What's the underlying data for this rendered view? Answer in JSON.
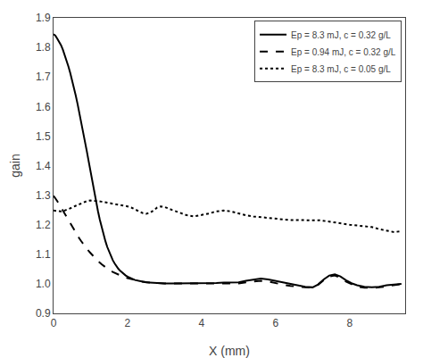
{
  "chart_data": {
    "type": "line",
    "xlabel": "X (mm)",
    "ylabel": "gain",
    "xlim": [
      0,
      9.5
    ],
    "ylim": [
      0.9,
      1.9
    ],
    "xticks": [
      0,
      2,
      4,
      6,
      8
    ],
    "yticks": [
      0.9,
      {
        "value": 1.0,
        "label": "1.0"
      },
      1.1,
      1.2,
      1.3,
      1.4,
      1.5,
      1.6,
      1.7,
      1.8,
      1.9
    ],
    "grid": false,
    "legend": "upper right",
    "series": [
      {
        "name": "Ep = 8.3 mJ, c = 0.32 g/L",
        "color": "#000000",
        "line_style": "solid",
        "x": [
          0.0,
          0.05,
          0.1,
          0.15,
          0.2,
          0.25,
          0.3,
          0.35,
          0.4,
          0.45,
          0.5,
          0.55,
          0.6,
          0.65,
          0.7,
          0.75,
          0.8,
          0.85,
          0.9,
          0.95,
          1.0,
          1.05,
          1.1,
          1.15,
          1.2,
          1.25,
          1.3,
          1.35,
          1.4,
          1.45,
          1.5,
          1.55,
          1.6,
          1.65,
          1.7,
          1.75,
          1.8,
          1.85,
          1.9,
          1.95,
          2.0,
          2.1,
          2.2,
          2.3,
          2.4,
          2.5,
          2.6,
          2.7,
          2.8,
          2.9,
          3.0,
          3.2,
          3.4,
          3.6,
          3.8,
          4.0,
          4.2,
          4.4,
          4.6,
          4.8,
          5.0,
          5.2,
          5.4,
          5.6,
          5.8,
          6.0,
          6.2,
          6.4,
          6.6,
          6.8,
          7.0,
          7.15,
          7.3,
          7.45,
          7.6,
          7.75,
          7.9,
          8.05,
          8.2,
          8.4,
          8.6,
          8.8,
          9.0,
          9.2,
          9.4
        ],
        "values": [
          1.845,
          1.84,
          1.83,
          1.82,
          1.808,
          1.793,
          1.776,
          1.757,
          1.736,
          1.714,
          1.69,
          1.664,
          1.637,
          1.608,
          1.578,
          1.547,
          1.515,
          1.482,
          1.448,
          1.414,
          1.379,
          1.344,
          1.31,
          1.277,
          1.246,
          1.217,
          1.191,
          1.167,
          1.145,
          1.125,
          1.108,
          1.093,
          1.08,
          1.069,
          1.059,
          1.051,
          1.044,
          1.038,
          1.033,
          1.028,
          1.024,
          1.018,
          1.013,
          1.01,
          1.007,
          1.005,
          1.004,
          1.003,
          1.002,
          1.001,
          1.001,
          1.001,
          1.001,
          1.001,
          1.001,
          1.001,
          1.002,
          1.003,
          1.004,
          1.004,
          1.005,
          1.01,
          1.015,
          1.018,
          1.015,
          1.01,
          1.005,
          1.0,
          0.995,
          0.99,
          0.988,
          0.998,
          1.015,
          1.028,
          1.032,
          1.025,
          1.012,
          1.002,
          0.995,
          0.99,
          0.988,
          0.99,
          0.995,
          0.998,
          1.0
        ]
      },
      {
        "name": "Ep = 0.94 mJ, c = 0.32 g/L",
        "color": "#000000",
        "line_style": "dashed",
        "x": [
          0.0,
          0.05,
          0.1,
          0.15,
          0.2,
          0.25,
          0.3,
          0.35,
          0.4,
          0.45,
          0.5,
          0.55,
          0.6,
          0.65,
          0.7,
          0.75,
          0.8,
          0.85,
          0.9,
          0.95,
          1.0,
          1.1,
          1.2,
          1.3,
          1.4,
          1.5,
          1.6,
          1.7,
          1.8,
          1.9,
          2.0,
          2.2,
          2.4,
          2.6,
          2.8,
          3.0,
          3.2,
          3.4,
          3.6,
          3.8,
          4.0,
          4.2,
          4.4,
          4.6,
          4.8,
          5.0,
          5.2,
          5.4,
          5.6,
          5.8,
          6.0,
          6.2,
          6.4,
          6.6,
          6.8,
          7.0,
          7.15,
          7.3,
          7.45,
          7.6,
          7.75,
          7.9,
          8.05,
          8.2,
          8.4,
          8.6,
          8.8,
          9.0,
          9.2,
          9.4
        ],
        "values": [
          1.298,
          1.29,
          1.28,
          1.27,
          1.259,
          1.248,
          1.237,
          1.226,
          1.215,
          1.204,
          1.193,
          1.183,
          1.173,
          1.163,
          1.153,
          1.144,
          1.135,
          1.127,
          1.119,
          1.111,
          1.104,
          1.09,
          1.077,
          1.066,
          1.056,
          1.047,
          1.04,
          1.034,
          1.028,
          1.023,
          1.019,
          1.012,
          1.007,
          1.004,
          1.002,
          1.001,
          1.001,
          1.001,
          1.001,
          1.001,
          1.001,
          1.001,
          1.001,
          1.001,
          1.001,
          1.001,
          1.005,
          1.008,
          1.01,
          1.008,
          1.002,
          0.997,
          0.993,
          0.99,
          0.988,
          0.987,
          0.997,
          1.012,
          1.025,
          1.028,
          1.02,
          1.008,
          0.998,
          0.99,
          0.987,
          0.986,
          0.988,
          0.992,
          0.996,
          0.999
        ]
      },
      {
        "name": "Ep = 8.3 mJ, c = 0.05 g/L",
        "color": "#000000",
        "line_style": "dotted",
        "x": [
          0.0,
          0.1,
          0.2,
          0.3,
          0.4,
          0.5,
          0.6,
          0.7,
          0.8,
          0.9,
          1.0,
          1.1,
          1.2,
          1.3,
          1.4,
          1.5,
          1.6,
          1.7,
          1.8,
          1.9,
          2.0,
          2.1,
          2.2,
          2.3,
          2.4,
          2.5,
          2.6,
          2.7,
          2.8,
          2.9,
          3.0,
          3.2,
          3.4,
          3.6,
          3.8,
          4.0,
          4.2,
          4.4,
          4.6,
          4.8,
          5.0,
          5.2,
          5.4,
          5.6,
          5.8,
          6.0,
          6.2,
          6.4,
          6.6,
          6.8,
          7.0,
          7.2,
          7.4,
          7.6,
          7.8,
          8.0,
          8.2,
          8.4,
          8.6,
          8.8,
          9.0,
          9.2,
          9.4
        ],
        "values": [
          1.248,
          1.246,
          1.245,
          1.248,
          1.252,
          1.258,
          1.264,
          1.27,
          1.276,
          1.28,
          1.282,
          1.282,
          1.28,
          1.278,
          1.276,
          1.274,
          1.272,
          1.27,
          1.268,
          1.265,
          1.262,
          1.258,
          1.252,
          1.245,
          1.24,
          1.237,
          1.24,
          1.248,
          1.258,
          1.262,
          1.26,
          1.25,
          1.24,
          1.232,
          1.228,
          1.232,
          1.238,
          1.245,
          1.248,
          1.245,
          1.238,
          1.232,
          1.228,
          1.225,
          1.222,
          1.22,
          1.218,
          1.216,
          1.215,
          1.215,
          1.215,
          1.215,
          1.212,
          1.208,
          1.204,
          1.2,
          1.198,
          1.195,
          1.192,
          1.185,
          1.18,
          1.175,
          1.178
        ]
      }
    ]
  }
}
